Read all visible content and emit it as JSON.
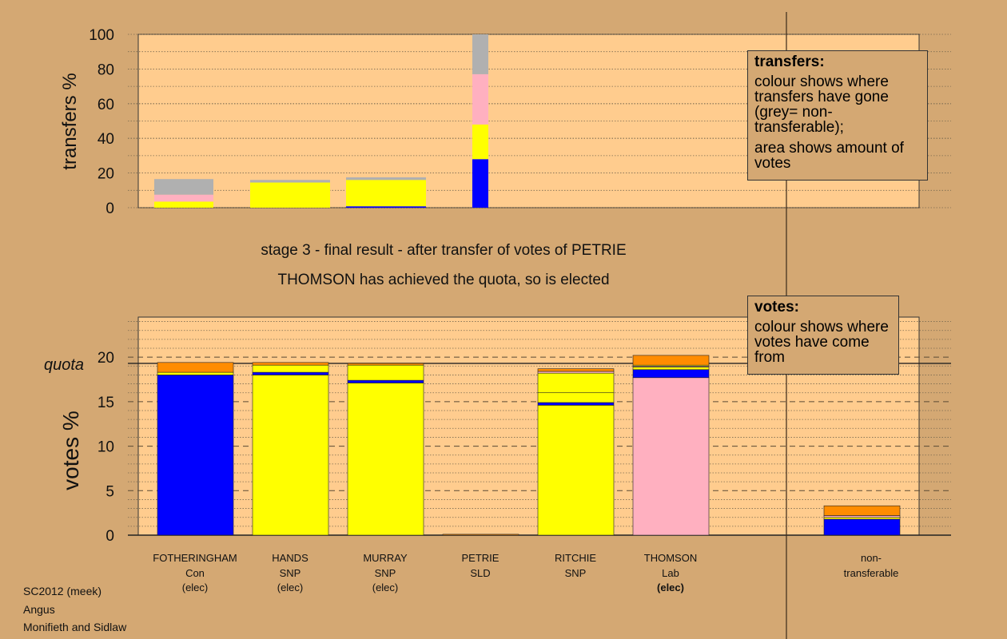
{
  "transfers_legend": {
    "title": "transfers:",
    "lines": [
      "colour shows where transfers have gone (grey= non-transferable);",
      "area shows amount of votes"
    ]
  },
  "votes_legend": {
    "title": "votes:",
    "lines": [
      "colour shows where votes have come from"
    ]
  },
  "headings": {
    "stage": "stage 3 - final result - after transfer of votes of PETRIE",
    "result": "THOMSON has achieved the quota, so is elected"
  },
  "candidates": [
    {
      "name": "FOTHERINGHAM",
      "party": "Con",
      "status": "(elec)",
      "bold": false
    },
    {
      "name": "HANDS",
      "party": "SNP",
      "status": "(elec)",
      "bold": false
    },
    {
      "name": "MURRAY",
      "party": "SNP",
      "status": "(elec)",
      "bold": false
    },
    {
      "name": "PETRIE",
      "party": "SLD",
      "status": "",
      "bold": false
    },
    {
      "name": "RITCHIE",
      "party": "SNP",
      "status": "",
      "bold": false
    },
    {
      "name": "THOMSON",
      "party": "Lab",
      "status": "(elec)",
      "bold": true
    }
  ],
  "nontransferable": {
    "line1": "non-",
    "line2": "transferable"
  },
  "footer": {
    "line1": "SC2012 (meek)",
    "line2": "Angus",
    "line3": "Monifieth and Sidlaw"
  },
  "colors": {
    "Con": "#0000ff",
    "SNP": "#ffff00",
    "Lab": "#ffb0c0",
    "SLD": "#ff8c00",
    "nontransferable": "#b0b0b0",
    "plot_bg": "#ffcc8e",
    "page_bg": "#d4a873"
  },
  "chart_data": [
    {
      "type": "bar",
      "stacked": true,
      "ylabel": "transfers %",
      "ylim": [
        0,
        100
      ],
      "yticks": [
        0,
        20,
        40,
        60,
        80,
        100
      ],
      "bars": [
        {
          "candidate": "FOTHERINGHAM",
          "segments": [
            {
              "to": "SNP",
              "value": 3.5
            },
            {
              "to": "Lab",
              "value": 4
            },
            {
              "to": "nontransferable",
              "value": 9
            }
          ]
        },
        {
          "candidate": "HANDS",
          "segments": [
            {
              "to": "SNP",
              "value": 14.5
            },
            {
              "to": "nontransferable",
              "value": 1.5
            }
          ]
        },
        {
          "candidate": "MURRAY",
          "segments": [
            {
              "to": "Con",
              "value": 0.8
            },
            {
              "to": "SNP",
              "value": 15.2
            },
            {
              "to": "nontransferable",
              "value": 1.5
            }
          ]
        },
        {
          "candidate": "PETRIE",
          "segments": [
            {
              "to": "Con",
              "value": 28
            },
            {
              "to": "SNP",
              "value": 20
            },
            {
              "to": "Lab",
              "value": 29
            },
            {
              "to": "nontransferable",
              "value": 23
            }
          ]
        }
      ]
    },
    {
      "type": "bar",
      "stacked": true,
      "ylabel": "votes %",
      "ylim": [
        0,
        24.5
      ],
      "yticks": [
        0,
        5,
        10,
        15,
        20
      ],
      "quota": 19.3,
      "quota_label": "quota",
      "bars": [
        {
          "candidate": "FOTHERINGHAM",
          "segments": [
            {
              "from": "Con",
              "value": 18.0
            },
            {
              "from": "SNP",
              "value": 0.3
            },
            {
              "from": "SLD",
              "value": 1.1
            }
          ]
        },
        {
          "candidate": "HANDS",
          "segments": [
            {
              "from": "SNP",
              "value": 18.0
            },
            {
              "from": "Con",
              "value": 0.3
            },
            {
              "from": "SNP",
              "value": 0.8
            },
            {
              "from": "SLD",
              "value": 0.3
            }
          ]
        },
        {
          "candidate": "MURRAY",
          "segments": [
            {
              "from": "SNP",
              "value": 17.1
            },
            {
              "from": "Con",
              "value": 0.3
            },
            {
              "from": "SNP",
              "value": 1.7
            },
            {
              "from": "SLD",
              "value": 0.2
            }
          ]
        },
        {
          "candidate": "PETRIE",
          "segments": [
            {
              "from": "SLD",
              "value": 0.1
            }
          ]
        },
        {
          "candidate": "RITCHIE",
          "segments": [
            {
              "from": "SNP",
              "value": 14.6
            },
            {
              "from": "Con",
              "value": 0.3
            },
            {
              "from": "SNP",
              "value": 1.1
            },
            {
              "from": "SNP",
              "value": 2.2
            },
            {
              "from": "Lab",
              "value": 0.2
            },
            {
              "from": "SLD",
              "value": 0.3
            }
          ]
        },
        {
          "candidate": "THOMSON",
          "segments": [
            {
              "from": "Lab",
              "value": 17.7
            },
            {
              "from": "Con",
              "value": 0.9
            },
            {
              "from": "SNP",
              "value": 0.3
            },
            {
              "from": "Lab",
              "value": 0.1
            },
            {
              "from": "SNP",
              "value": 0.1
            },
            {
              "from": "SLD",
              "value": 1.1
            }
          ]
        },
        {
          "candidate": "non-transferable",
          "segments": [
            {
              "from": "Con",
              "value": 1.8
            },
            {
              "from": "SNP",
              "value": 0.2
            },
            {
              "from": "Lab",
              "value": 0.2
            },
            {
              "from": "SLD",
              "value": 1.1
            }
          ]
        }
      ]
    }
  ]
}
